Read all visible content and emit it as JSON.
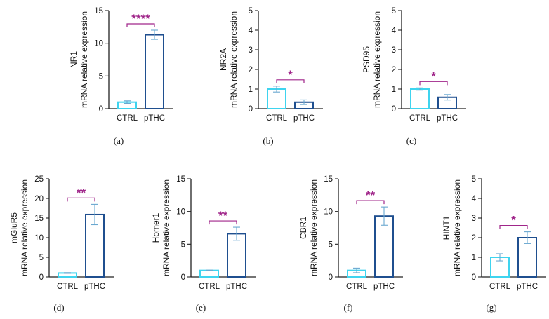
{
  "colors": {
    "ctrl": "#3fd4ef",
    "pthc": "#1f4f8f",
    "error_bar": "#6aa8d0",
    "significance": "#a0268a",
    "axis": "#222222"
  },
  "chart_data": [
    {
      "type": "bar",
      "panel_label": "(a)",
      "ylabel": [
        "NR1",
        "mRNA relative expression"
      ],
      "categories": [
        "CTRL",
        "pTHC"
      ],
      "values": [
        1.0,
        11.3
      ],
      "errors": [
        0.2,
        0.7
      ],
      "ylim": [
        0,
        15
      ],
      "yticks": [
        0,
        5,
        10,
        15
      ],
      "significance": "****",
      "legend": "none",
      "grid": false
    },
    {
      "type": "bar",
      "panel_label": "(b)",
      "ylabel": [
        "NR2A",
        "mRNA relative expression"
      ],
      "categories": [
        "CTRL",
        "pTHC"
      ],
      "values": [
        1.0,
        0.33
      ],
      "errors": [
        0.15,
        0.12
      ],
      "ylim": [
        0,
        5
      ],
      "yticks": [
        0,
        1,
        2,
        3,
        4,
        5
      ],
      "significance": "*",
      "legend": "none",
      "grid": false
    },
    {
      "type": "bar",
      "panel_label": "(c)",
      "ylabel": [
        "PSD95",
        "mRNA relative expression"
      ],
      "categories": [
        "CTRL",
        "pTHC"
      ],
      "values": [
        1.0,
        0.58
      ],
      "errors": [
        0.06,
        0.14
      ],
      "ylim": [
        0,
        5
      ],
      "yticks": [
        0,
        1,
        2,
        3,
        4,
        5
      ],
      "significance": "*",
      "legend": "none",
      "grid": false
    },
    {
      "type": "bar",
      "panel_label": "(d)",
      "ylabel": [
        "mGluR5",
        "mRNA relative expression"
      ],
      "categories": [
        "CTRL",
        "pTHC"
      ],
      "values": [
        1.0,
        15.9
      ],
      "errors": [
        0.1,
        2.6
      ],
      "ylim": [
        0,
        25
      ],
      "yticks": [
        0,
        5,
        10,
        15,
        20,
        25
      ],
      "significance": "**",
      "legend": "none",
      "grid": false
    },
    {
      "type": "bar",
      "panel_label": "(e)",
      "ylabel": [
        "Homer1",
        "mRNA relative expression"
      ],
      "categories": [
        "CTRL",
        "pTHC"
      ],
      "values": [
        1.0,
        6.6
      ],
      "errors": [
        0.05,
        1.0
      ],
      "ylim": [
        0,
        15
      ],
      "yticks": [
        0,
        5,
        10,
        15
      ],
      "significance": "**",
      "legend": "none",
      "grid": false
    },
    {
      "type": "bar",
      "panel_label": "(f)",
      "ylabel": [
        "CBR1",
        "mRNA relative expression"
      ],
      "categories": [
        "CTRL",
        "pTHC"
      ],
      "values": [
        1.0,
        9.3
      ],
      "errors": [
        0.35,
        1.4
      ],
      "ylim": [
        0,
        15
      ],
      "yticks": [
        0,
        5,
        10,
        15
      ],
      "significance": "**",
      "legend": "none",
      "grid": false
    },
    {
      "type": "bar",
      "panel_label": "(g)",
      "ylabel": [
        "HINT1",
        "mRNA relative expression"
      ],
      "categories": [
        "CTRL",
        "pTHC"
      ],
      "values": [
        1.0,
        2.0
      ],
      "errors": [
        0.18,
        0.3
      ],
      "ylim": [
        0,
        5
      ],
      "yticks": [
        0,
        1,
        2,
        3,
        4,
        5
      ],
      "significance": "*",
      "legend": "none",
      "grid": false
    }
  ]
}
